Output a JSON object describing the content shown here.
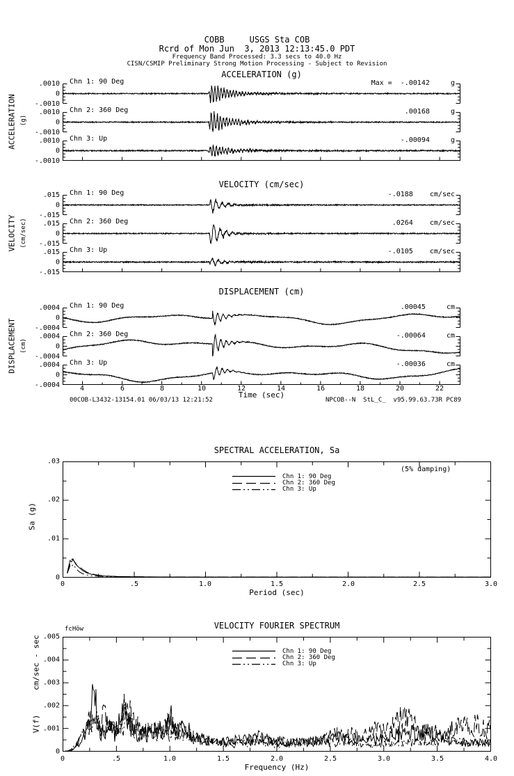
{
  "header": {
    "station_line": "COBB     USGS Sta COB",
    "record_line": "Rcrd of Mon Jun  3, 2013 12:13:45.0 PDT",
    "band_line": "Frequency Band Processed: 3.3 secs to 40.0 Hz",
    "notice_line": "CISN/CSMIP Preliminary Strong Motion Processing - Subject to Revision"
  },
  "time_axis": {
    "label": "Time (sec)",
    "ticks": [
      "4",
      "6",
      "8",
      "10",
      "12",
      "14",
      "16",
      "18",
      "20",
      "22"
    ]
  },
  "footer": {
    "left": "00COB-L3432-13154.01 06/03/13 12:21:52",
    "right": "NPCOB--N  StL_C_  v95.99.63.73R PC89"
  },
  "chart_data": [
    {
      "type": "line",
      "id": "acceleration",
      "kind": "burst",
      "title": "ACCELERATION (g)",
      "side_label": "ACCELERATION",
      "side_units": "(g)",
      "units": "g",
      "axis_limit": 0.001,
      "ticks": [
        ".0010",
        "0",
        "-.0010"
      ],
      "x_range": [
        3,
        23.05
      ],
      "event_start_sec": 10.35,
      "rise": 0.12,
      "decay": 0.9,
      "osc_hz": 6.5,
      "coda": 0.18,
      "coda_decay": 4,
      "channels": [
        {
          "name": "Chn 1: 90 Deg",
          "max_value": -0.00142,
          "max_label": "Max =  -.00142     g",
          "peak_ratio": 1.42,
          "pre_noise": 0.05,
          "phase": 0.7
        },
        {
          "name": "Chn 2: 360 Deg",
          "max_value": 0.00168,
          "max_label": ".00168     g",
          "peak_ratio": 1.68,
          "pre_noise": 0.05,
          "phase": 2.1
        },
        {
          "name": "Chn 3: Up",
          "max_value": -0.00094,
          "max_label": "-.00094     g",
          "peak_ratio": 0.94,
          "pre_noise": 0.06,
          "phase": 4.0
        }
      ]
    },
    {
      "type": "line",
      "id": "velocity",
      "kind": "burst",
      "title": "VELOCITY (cm/sec)",
      "side_label": "VELOCITY",
      "side_units": "(cm/sec)",
      "units": "cm/sec",
      "axis_limit": 0.015,
      "ticks": [
        ".015",
        "0",
        "-.015"
      ],
      "x_range": [
        3,
        23.05
      ],
      "event_start_sec": 10.4,
      "rise": 0.08,
      "decay": 0.5,
      "osc_hz": 3.2,
      "coda": 0.12,
      "coda_decay": 3,
      "channels": [
        {
          "name": "Chn 1: 90 Deg",
          "max_value": -0.0188,
          "max_label": "-.0188    cm/sec",
          "peak_ratio": 1.25,
          "pre_noise": 0.05,
          "phase": 1.2
        },
        {
          "name": "Chn 2: 360 Deg",
          "max_value": 0.0264,
          "max_label": ".0264    cm/sec",
          "peak_ratio": 1.76,
          "pre_noise": 0.05,
          "phase": 3.3
        },
        {
          "name": "Chn 3: Up",
          "max_value": -0.0105,
          "max_label": "-.0105    cm/sec",
          "peak_ratio": 0.7,
          "pre_noise": 0.06,
          "phase": 5.1
        }
      ]
    },
    {
      "type": "line",
      "id": "displacement",
      "kind": "drift",
      "title": "DISPLACEMENT (cm)",
      "side_label": "DISPLACEMENT",
      "side_units": "(cm)",
      "units": "cm",
      "axis_limit": 0.0004,
      "ticks": [
        ".0004",
        "0",
        "-.0004"
      ],
      "x_range": [
        3,
        23.05
      ],
      "event_start_sec": 10.55,
      "spike_decay": 0.45,
      "spike_hz": 3.6,
      "channels": [
        {
          "name": "Chn 1: 90 Deg",
          "max_value": 0.00045,
          "max_label": ".00045     cm",
          "peak_ratio": 1.12,
          "w1": 0.3,
          "w2": 0.22,
          "w3": 0.1,
          "w4": 0.1,
          "p1": 2.0,
          "p2": 0.5,
          "p3": 1.2,
          "p4": 0.4,
          "phase": 1.8
        },
        {
          "name": "Chn 2: 360 Deg",
          "max_value": -0.00064,
          "max_label": "-.00064     cm",
          "peak_ratio": 1.55,
          "w1": 0.22,
          "w2": 0.2,
          "w3": 0.12,
          "w4": 0.4,
          "p1": 4.4,
          "p2": 2.2,
          "p3": 0.3,
          "p4": 4.9,
          "phase": 4.5
        },
        {
          "name": "Chn 3: Up",
          "max_value": -0.00036,
          "max_label": "-.00036     cm",
          "peak_ratio": 0.95,
          "w1": 0.34,
          "w2": 0.2,
          "w3": 0.12,
          "w4": 0.12,
          "p1": 1.0,
          "p2": 3.6,
          "p3": 2.5,
          "p4": 2.2,
          "phase": 3.0
        }
      ]
    },
    {
      "type": "line",
      "id": "spectral-acceleration",
      "title": "SPECTRAL ACCELERATION, Sa",
      "annotation": "(5% damping)",
      "xlabel": "Period (sec)",
      "ylabel": "Sa (g)",
      "xlim": [
        0,
        3
      ],
      "ylim": [
        0,
        0.03
      ],
      "x_ticks": [
        "0",
        ".5",
        "1.0",
        "1.5",
        "2.0",
        "2.5",
        "3.0"
      ],
      "y_ticks": [
        ".03",
        ".02",
        ".01",
        "0"
      ],
      "series": [
        {
          "name": "Chn 1: 90 Deg",
          "dash": "solid",
          "x": [
            0.03,
            0.04,
            0.05,
            0.06,
            0.07,
            0.08,
            0.09,
            0.1,
            0.12,
            0.14,
            0.17,
            0.2,
            0.25,
            0.3,
            0.4,
            0.5,
            0.7,
            1.0,
            1.5,
            2.0,
            2.5,
            3.0
          ],
          "y": [
            0.0012,
            0.0028,
            0.0044,
            0.004,
            0.0046,
            0.0041,
            0.0036,
            0.003,
            0.0023,
            0.0017,
            0.0011,
            0.0008,
            0.00045,
            0.0003,
            0.00018,
            0.00012,
            8e-05,
            6e-05,
            5e-05,
            4e-05,
            4e-05,
            3e-05
          ]
        },
        {
          "name": "Chn 2: 360 Deg",
          "dash": "dash",
          "x": [
            0.03,
            0.04,
            0.05,
            0.06,
            0.07,
            0.08,
            0.09,
            0.1,
            0.12,
            0.14,
            0.17,
            0.2,
            0.25,
            0.3,
            0.4,
            0.5,
            0.7,
            1.0,
            1.5,
            2.0,
            2.5,
            3.0
          ],
          "y": [
            0.0011,
            0.0024,
            0.0036,
            0.0046,
            0.0048,
            0.004,
            0.0034,
            0.003,
            0.0026,
            0.002,
            0.0013,
            0.0009,
            0.00055,
            0.00035,
            0.0002,
            0.00014,
            9e-05,
            7e-05,
            5e-05,
            4e-05,
            4e-05,
            3e-05
          ]
        },
        {
          "name": "Chn 3: Up",
          "dash": "dashdot",
          "x": [
            0.03,
            0.04,
            0.05,
            0.06,
            0.07,
            0.08,
            0.09,
            0.1,
            0.12,
            0.14,
            0.17,
            0.2,
            0.25,
            0.3,
            0.4,
            0.5,
            0.7,
            1.0,
            1.5,
            2.0,
            2.5,
            3.0
          ],
          "y": [
            0.001,
            0.002,
            0.003,
            0.0027,
            0.0033,
            0.0029,
            0.0024,
            0.0019,
            0.0013,
            0.0009,
            0.0006,
            0.00042,
            0.00028,
            0.0002,
            0.00012,
            9e-05,
            6e-05,
            5e-05,
            4e-05,
            3e-05,
            3e-05,
            2e-05
          ]
        }
      ]
    },
    {
      "type": "line",
      "id": "velocity-fourier-spectrum",
      "title": "VELOCITY FOURIER SPECTRUM",
      "corner_label": "fcHöw",
      "xlabel": "Frequency (Hz)",
      "ylabel_top": "cm/sec - sec",
      "ylabel_bottom": "V(f)",
      "xlim": [
        0,
        4
      ],
      "ylim": [
        0,
        0.005
      ],
      "x_ticks": [
        "0",
        ".5",
        "1.0",
        "1.5",
        "2.0",
        "2.5",
        "3.0",
        "3.5",
        "4.0"
      ],
      "y_ticks": [
        ".005",
        ".004",
        ".003",
        ".002",
        ".001",
        "0"
      ],
      "series": [
        {
          "name": "Chn 1: 90 Deg",
          "dash": "solid",
          "env": [
            [
              0.03,
              2e-05
            ],
            [
              0.1,
              0.0001
            ],
            [
              0.15,
              0.0003
            ],
            [
              0.2,
              0.0007
            ],
            [
              0.25,
              0.0012
            ],
            [
              0.29,
              0.003
            ],
            [
              0.33,
              0.001
            ],
            [
              0.38,
              0.0008
            ],
            [
              0.43,
              0.0014
            ],
            [
              0.48,
              0.0008
            ],
            [
              0.55,
              0.0015
            ],
            [
              0.58,
              0.0024
            ],
            [
              0.62,
              0.0012
            ],
            [
              0.7,
              0.0008
            ],
            [
              0.8,
              0.0008
            ],
            [
              0.87,
              0.0011
            ],
            [
              0.95,
              0.0008
            ],
            [
              1.0,
              0.0018
            ],
            [
              1.05,
              0.0009
            ],
            [
              1.15,
              0.0011
            ],
            [
              1.25,
              0.0006
            ],
            [
              1.4,
              0.0005
            ],
            [
              1.6,
              0.0004
            ],
            [
              1.8,
              0.0006
            ],
            [
              2.0,
              0.0004
            ],
            [
              2.2,
              0.0004
            ],
            [
              2.4,
              0.0005
            ],
            [
              2.6,
              0.0006
            ],
            [
              2.8,
              0.0005
            ],
            [
              3.0,
              0.0006
            ],
            [
              3.2,
              0.0008
            ],
            [
              3.4,
              0.0009
            ],
            [
              3.6,
              0.0005
            ],
            [
              3.8,
              0.0004
            ],
            [
              4.0,
              0.0004
            ]
          ]
        },
        {
          "name": "Chn 2: 360 Deg",
          "dash": "dash",
          "env": [
            [
              0.03,
              2e-05
            ],
            [
              0.1,
              0.0001
            ],
            [
              0.15,
              0.0004
            ],
            [
              0.2,
              0.0009
            ],
            [
              0.25,
              0.0014
            ],
            [
              0.29,
              0.0026
            ],
            [
              0.33,
              0.0012
            ],
            [
              0.4,
              0.0016
            ],
            [
              0.48,
              0.001
            ],
            [
              0.58,
              0.0022
            ],
            [
              0.65,
              0.0014
            ],
            [
              0.75,
              0.0009
            ],
            [
              0.9,
              0.001
            ],
            [
              1.0,
              0.0013
            ],
            [
              1.1,
              0.0012
            ],
            [
              1.2,
              0.0007
            ],
            [
              1.4,
              0.0004
            ],
            [
              1.6,
              0.0005
            ],
            [
              1.85,
              0.0007
            ],
            [
              2.1,
              0.0004
            ],
            [
              2.4,
              0.0005
            ],
            [
              2.6,
              0.0009
            ],
            [
              2.8,
              0.0007
            ],
            [
              3.0,
              0.0011
            ],
            [
              3.2,
              0.0015
            ],
            [
              3.35,
              0.0009
            ],
            [
              3.55,
              0.0008
            ],
            [
              3.7,
              0.0012
            ],
            [
              3.85,
              0.0013
            ],
            [
              4.0,
              0.001
            ]
          ]
        },
        {
          "name": "Chn 3: Up",
          "dash": "dashdot",
          "env": [
            [
              0.03,
              2e-05
            ],
            [
              0.1,
              0.0002
            ],
            [
              0.15,
              0.0005
            ],
            [
              0.2,
              0.0008
            ],
            [
              0.25,
              0.0011
            ],
            [
              0.29,
              0.0021
            ],
            [
              0.35,
              0.0009
            ],
            [
              0.43,
              0.0011
            ],
            [
              0.5,
              0.0008
            ],
            [
              0.58,
              0.0015
            ],
            [
              0.68,
              0.001
            ],
            [
              0.8,
              0.0007
            ],
            [
              0.95,
              0.0009
            ],
            [
              1.05,
              0.0007
            ],
            [
              1.2,
              0.0006
            ],
            [
              1.4,
              0.0004
            ],
            [
              1.6,
              0.0003
            ],
            [
              1.8,
              0.0004
            ],
            [
              2.0,
              0.0003
            ],
            [
              2.3,
              0.0004
            ],
            [
              2.6,
              0.0004
            ],
            [
              2.9,
              0.0003
            ],
            [
              3.2,
              0.0004
            ],
            [
              3.5,
              0.0005
            ],
            [
              3.7,
              0.0004
            ],
            [
              4.0,
              0.0004
            ]
          ]
        }
      ]
    }
  ]
}
